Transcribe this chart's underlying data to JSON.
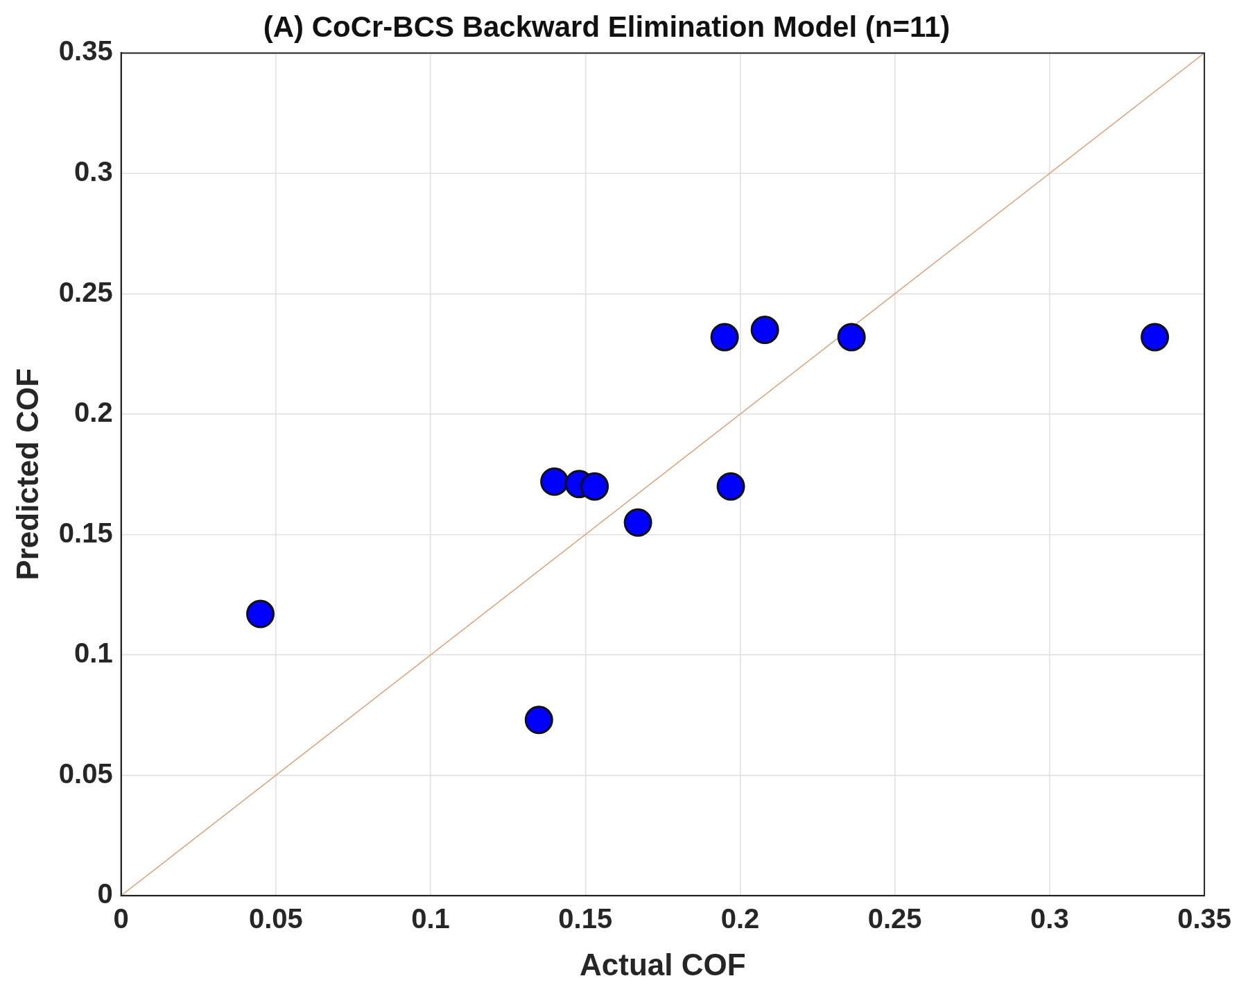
{
  "chart_data": {
    "type": "scatter",
    "title": "(A) CoCr-BCS Backward Elimination Model (n=11)",
    "xlabel": "Actual COF",
    "ylabel": "Predicted COF",
    "series": [
      {
        "color": "#0000ff",
        "x": [
          0.045,
          0.135,
          0.14,
          0.148,
          0.153,
          0.167,
          0.197,
          0.195,
          0.208,
          0.236,
          0.334
        ],
        "values": [
          0.117,
          0.073,
          0.172,
          0.171,
          0.17,
          0.155,
          0.17,
          0.232,
          0.235,
          0.232,
          0.232
        ]
      },
      {
        "type": "line",
        "marker": "none",
        "color": "#dba47e",
        "x": [
          0,
          0.35
        ],
        "values": [
          0,
          0.35
        ]
      }
    ],
    "xlim": [
      0,
      0.35
    ],
    "ylim": [
      0,
      0.35
    ],
    "xticks": [
      0,
      0.05,
      0.1,
      0.15,
      0.2,
      0.25,
      0.3,
      0.35
    ],
    "yticks": [
      0,
      0.05,
      0.1,
      0.15,
      0.2,
      0.25,
      0.3,
      0.35
    ],
    "grid": true,
    "legend": false,
    "marker": "circle"
  }
}
